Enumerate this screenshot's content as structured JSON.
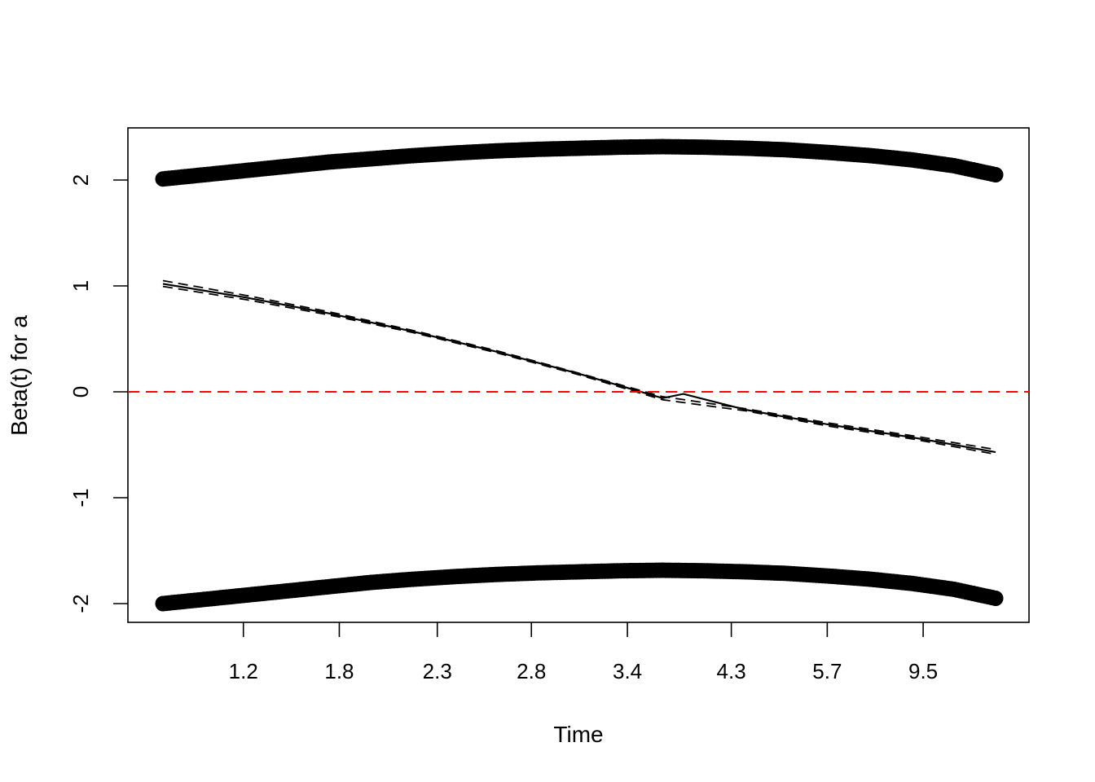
{
  "chart_data": {
    "type": "scatter",
    "xlabel": "Time",
    "ylabel": "Beta(t) for a",
    "xlim": [
      0,
      1
    ],
    "ylim": [
      -2.45,
      2.48
    ],
    "x_ticks": [
      {
        "value": 0.0966,
        "label": "1.2"
      },
      {
        "value": 0.2118,
        "label": "1.8"
      },
      {
        "value": 0.3295,
        "label": "2.3"
      },
      {
        "value": 0.4425,
        "label": "2.8"
      },
      {
        "value": 0.5578,
        "label": "3.4"
      },
      {
        "value": 0.6826,
        "label": "4.3"
      },
      {
        "value": 0.7978,
        "label": "5.7"
      },
      {
        "value": 0.913,
        "label": "9.5"
      }
    ],
    "y_ticks": [
      -2,
      -1,
      0,
      1,
      2
    ],
    "reference_line": {
      "y": 0,
      "color": "#ff0000",
      "style": "dashed"
    },
    "series": [
      {
        "role": "residual-points-upper",
        "style": "points",
        "x": [
          0.0,
          0.05,
          0.1,
          0.15,
          0.2,
          0.25,
          0.3,
          0.35,
          0.4,
          0.45,
          0.5,
          0.55,
          0.6,
          0.65,
          0.7,
          0.75,
          0.8,
          0.85,
          0.9,
          0.95,
          1.0
        ],
        "y": [
          2.01,
          2.05,
          2.09,
          2.13,
          2.17,
          2.2,
          2.23,
          2.255,
          2.275,
          2.29,
          2.3,
          2.31,
          2.315,
          2.31,
          2.3,
          2.285,
          2.26,
          2.23,
          2.19,
          2.135,
          2.05
        ]
      },
      {
        "role": "residual-points-lower",
        "style": "points",
        "x": [
          0.0,
          0.05,
          0.1,
          0.15,
          0.2,
          0.25,
          0.3,
          0.35,
          0.4,
          0.45,
          0.5,
          0.55,
          0.6,
          0.65,
          0.7,
          0.75,
          0.8,
          0.85,
          0.9,
          0.95,
          1.0
        ],
        "y": [
          -2.0,
          -1.96,
          -1.92,
          -1.88,
          -1.84,
          -1.8,
          -1.77,
          -1.745,
          -1.725,
          -1.71,
          -1.7,
          -1.69,
          -1.685,
          -1.69,
          -1.7,
          -1.715,
          -1.74,
          -1.77,
          -1.81,
          -1.865,
          -1.95
        ]
      },
      {
        "role": "fitted-line",
        "style": "solid",
        "x": [
          0.0,
          0.1,
          0.2,
          0.3,
          0.4,
          0.5,
          0.6,
          0.625,
          0.7,
          0.8,
          0.9,
          1.0
        ],
        "y": [
          1.02,
          0.89,
          0.74,
          0.57,
          0.38,
          0.17,
          -0.06,
          -0.02,
          -0.17,
          -0.31,
          -0.43,
          -0.57
        ]
      },
      {
        "role": "confidence-upper",
        "style": "dashed",
        "x": [
          0.0,
          0.1,
          0.2,
          0.3,
          0.4,
          0.5,
          0.6,
          0.7,
          0.8,
          0.9,
          1.0
        ],
        "y": [
          1.05,
          0.91,
          0.755,
          0.58,
          0.39,
          0.175,
          -0.045,
          -0.16,
          -0.295,
          -0.415,
          -0.545
        ]
      },
      {
        "role": "confidence-lower",
        "style": "dashed",
        "x": [
          0.0,
          0.1,
          0.2,
          0.3,
          0.4,
          0.5,
          0.6,
          0.7,
          0.8,
          0.9,
          1.0
        ],
        "y": [
          0.995,
          0.87,
          0.725,
          0.56,
          0.37,
          0.16,
          -0.075,
          -0.18,
          -0.325,
          -0.445,
          -0.59
        ]
      }
    ]
  }
}
